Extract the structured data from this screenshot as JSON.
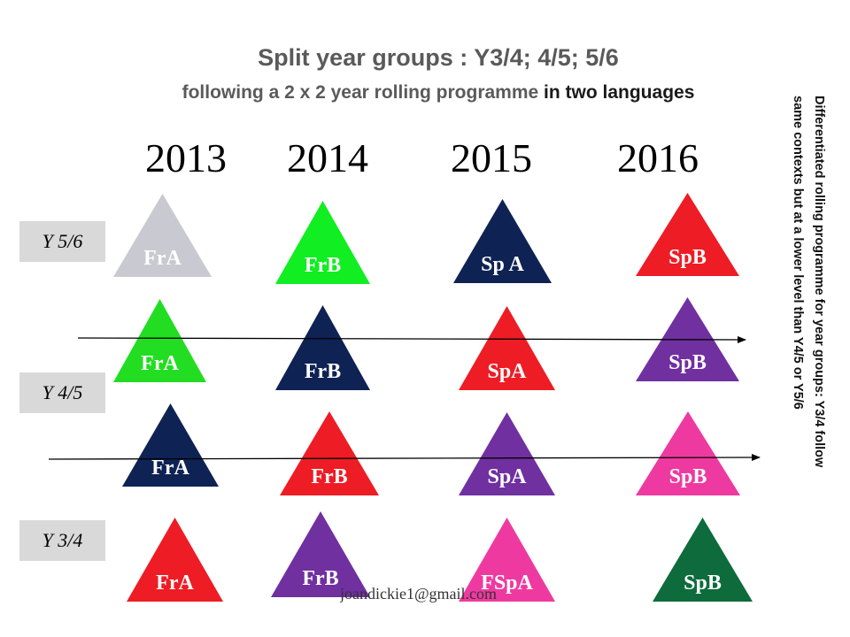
{
  "header": {
    "title": "Split year groups : Y3/4; 4/5; 5/6",
    "subtitle_main": "following a 2 x 2  year rolling programme ",
    "subtitle_emphasis": "in two languages"
  },
  "years": [
    "2013",
    "2014",
    "2015",
    "2016"
  ],
  "year_group_labels": [
    "Y 5/6",
    "Y 4/5",
    "Y 3/4"
  ],
  "side_note": {
    "line1": "Differentiated  rolling programme for year groups: Y3/4 follow",
    "line2": "same contexts but  at a lower level than Y4/5 or Y5/6"
  },
  "watermark": "joandickie1@gmail.com",
  "triangles": [
    {
      "label": "FrA",
      "color": "#c9c9d1",
      "row": 1,
      "year": "2013"
    },
    {
      "label": "FrB",
      "color": "#11ee22",
      "row": 1,
      "year": "2014"
    },
    {
      "label": "Sp A",
      "color": "#0e2254",
      "row": 1,
      "year": "2015"
    },
    {
      "label": "SpB",
      "color": "#ee1c24",
      "row": 1,
      "year": "2016"
    },
    {
      "label": "FrA",
      "color": "#22dd22",
      "row": 2,
      "year": "2013"
    },
    {
      "label": "FrB",
      "color": "#0e2254",
      "row": 2,
      "year": "2014"
    },
    {
      "label": "SpA",
      "color": "#ee1c24",
      "row": 2,
      "year": "2015"
    },
    {
      "label": "SpB",
      "color": "#7030a0",
      "row": 2,
      "year": "2016"
    },
    {
      "label": "FrA",
      "color": "#0e2254",
      "row": 3,
      "year": "2013"
    },
    {
      "label": "FrB",
      "color": "#ee1c24",
      "row": 3,
      "year": "2014"
    },
    {
      "label": "SpA",
      "color": "#7030a0",
      "row": 3,
      "year": "2015"
    },
    {
      "label": "SpB",
      "color": "#ee3aa0",
      "row": 3,
      "year": "2016"
    },
    {
      "label": "FrA",
      "color": "#ee1c24",
      "row": 4,
      "year": "2013"
    },
    {
      "label": "FrB",
      "color": "#7030a0",
      "row": 4,
      "year": "2014"
    },
    {
      "label": "FSpA",
      "color": "#ee3aa0",
      "row": 4,
      "year": "2015"
    },
    {
      "label": "SpB",
      "color": "#0e6b3c",
      "row": 4,
      "year": "2016"
    }
  ]
}
